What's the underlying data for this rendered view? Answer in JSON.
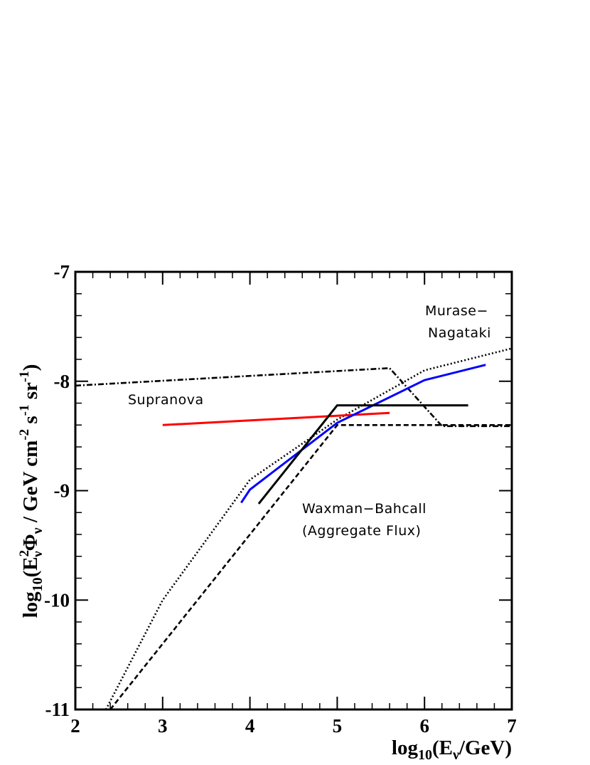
{
  "chart_data": {
    "type": "line",
    "xlabel": "log10(Eν/GeV)",
    "ylabel": "log10(Eν²Φν / GeV cm⁻² s⁻¹ sr⁻¹)",
    "xlim": [
      2,
      7
    ],
    "ylim": [
      -11,
      -7
    ],
    "x_ticks": [
      "2",
      "3",
      "4",
      "5",
      "6",
      "7"
    ],
    "y_ticks": [
      "-7",
      "-8",
      "-9",
      "-10",
      "-11"
    ],
    "annotations": [
      "Murase−",
      "Nagataki",
      "Supranova",
      "Waxman−Bahcall",
      "(Aggregate Flux)"
    ],
    "series": [
      {
        "color": "#000000",
        "dash": "dashdot",
        "x": [
          2.0,
          5.6,
          6.2,
          7.0
        ],
        "y": [
          -8.04,
          -7.88,
          -8.41,
          -8.41
        ]
      },
      {
        "color": "#000000",
        "dash": "dotted",
        "x": [
          2.35,
          3.0,
          4.0,
          5.0,
          6.0,
          7.0
        ],
        "y": [
          -11.0,
          -10.0,
          -8.9,
          -8.35,
          -7.9,
          -7.7
        ]
      },
      {
        "color": "#000000",
        "dash": "dashed",
        "x": [
          2.4,
          5.0,
          7.0
        ],
        "y": [
          -11.0,
          -8.4,
          -8.4
        ]
      },
      {
        "color": "#ff0000",
        "dash": "solid",
        "x": [
          3.0,
          5.6
        ],
        "y": [
          -8.4,
          -8.29
        ]
      },
      {
        "color": "#0000ff",
        "dash": "solid",
        "x": [
          3.9,
          4.0,
          5.0,
          6.0,
          6.7
        ],
        "y": [
          -9.11,
          -8.99,
          -8.38,
          -7.99,
          -7.85
        ]
      },
      {
        "color": "#000000",
        "dash": "solid",
        "x": [
          4.1,
          5.0,
          6.5
        ],
        "y": [
          -9.12,
          -8.22,
          -8.22
        ]
      }
    ]
  }
}
